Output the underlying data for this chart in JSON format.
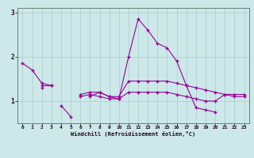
{
  "xlabel": "Windchill (Refroidissement éolien,°C)",
  "background_color": "#cce8e8",
  "line_color": "#990099",
  "x_values": [
    0,
    1,
    2,
    3,
    4,
    5,
    6,
    7,
    8,
    9,
    10,
    11,
    12,
    13,
    14,
    15,
    16,
    17,
    18,
    19,
    20,
    21,
    22,
    23
  ],
  "series1": [
    1.85,
    1.7,
    1.4,
    1.35,
    null,
    null,
    null,
    1.1,
    1.2,
    1.1,
    1.05,
    2.0,
    2.85,
    2.6,
    2.3,
    2.2,
    1.9,
    1.35,
    0.85,
    0.8,
    0.75,
    null,
    null,
    null
  ],
  "series2": [
    null,
    null,
    null,
    null,
    0.9,
    0.65,
    null,
    null,
    null,
    null,
    null,
    null,
    null,
    null,
    null,
    null,
    null,
    null,
    null,
    null,
    null,
    null,
    null,
    null
  ],
  "series3": [
    null,
    null,
    1.35,
    1.35,
    null,
    null,
    1.15,
    1.2,
    1.2,
    1.1,
    1.1,
    1.45,
    1.45,
    1.45,
    1.45,
    1.45,
    1.4,
    1.35,
    1.3,
    1.25,
    1.2,
    1.15,
    1.1,
    1.1
  ],
  "series4": [
    null,
    null,
    1.3,
    null,
    null,
    null,
    1.1,
    1.15,
    1.1,
    1.05,
    1.05,
    1.2,
    1.2,
    1.2,
    1.2,
    1.2,
    1.15,
    1.1,
    1.05,
    1.0,
    1.0,
    1.15,
    1.15,
    1.15
  ],
  "ylim": [
    0.5,
    3.1
  ],
  "xlim": [
    -0.5,
    23.5
  ],
  "yticks": [
    1,
    2,
    3
  ],
  "xticks": [
    0,
    1,
    2,
    3,
    4,
    5,
    6,
    7,
    8,
    9,
    10,
    11,
    12,
    13,
    14,
    15,
    16,
    17,
    18,
    19,
    20,
    21,
    22,
    23
  ],
  "figsize": [
    3.2,
    2.0
  ],
  "dpi": 100
}
